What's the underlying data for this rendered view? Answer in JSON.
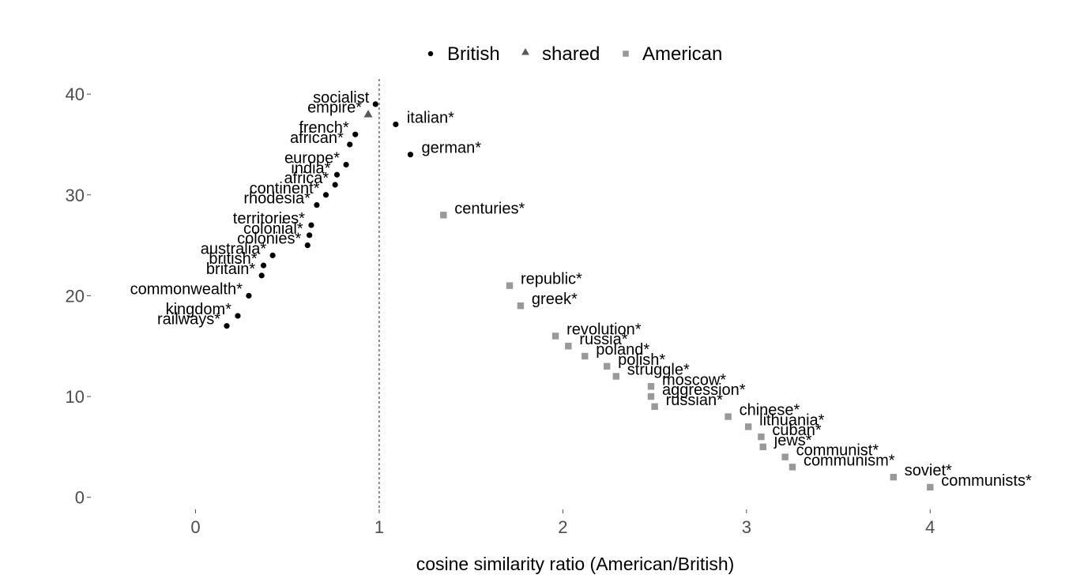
{
  "chart_data": {
    "type": "scatter",
    "xlabel": "cosine similarity ratio (American/British)",
    "ylabel": "",
    "xlim": [
      -0.57,
      4.7
    ],
    "ylim": [
      -1.2,
      41.5
    ],
    "x_ticks": [
      0,
      1,
      2,
      3,
      4
    ],
    "y_ticks": [
      0,
      10,
      20,
      30,
      40
    ],
    "x_tick_labels": [
      "0",
      "1",
      "2",
      "3",
      "4"
    ],
    "y_tick_labels": [
      "0",
      "10",
      "20",
      "30",
      "40"
    ],
    "reference_line": {
      "x": 1,
      "style": "dotted"
    },
    "grid": false,
    "legend": {
      "placement": "top",
      "entries": [
        {
          "label": "British",
          "shape": "circle",
          "color": "#000000"
        },
        {
          "label": "shared",
          "shape": "triangle",
          "color": "#595959"
        },
        {
          "label": "American",
          "shape": "square",
          "color": "#999999"
        }
      ]
    },
    "series": [
      {
        "name": "British",
        "shape": "circle",
        "color": "#000000",
        "points": [
          {
            "label": "socialist",
            "x": 0.98,
            "y": 39
          },
          {
            "label": "italian*",
            "x": 1.09,
            "y": 37
          },
          {
            "label": "french*",
            "x": 0.87,
            "y": 36
          },
          {
            "label": "african*",
            "x": 0.84,
            "y": 35
          },
          {
            "label": "german*",
            "x": 1.17,
            "y": 34
          },
          {
            "label": "europe*",
            "x": 0.82,
            "y": 33
          },
          {
            "label": "india*",
            "x": 0.77,
            "y": 32
          },
          {
            "label": "africa*",
            "x": 0.76,
            "y": 31
          },
          {
            "label": "continent*",
            "x": 0.71,
            "y": 30
          },
          {
            "label": "rhodesia*",
            "x": 0.66,
            "y": 29
          },
          {
            "label": "territories*",
            "x": 0.63,
            "y": 27
          },
          {
            "label": "colonial*",
            "x": 0.62,
            "y": 26
          },
          {
            "label": "colonies*",
            "x": 0.61,
            "y": 25
          },
          {
            "label": "australia*",
            "x": 0.42,
            "y": 24
          },
          {
            "label": "british*",
            "x": 0.37,
            "y": 23
          },
          {
            "label": "britain*",
            "x": 0.36,
            "y": 22
          },
          {
            "label": "commonwealth*",
            "x": 0.29,
            "y": 20
          },
          {
            "label": "kingdom*",
            "x": 0.23,
            "y": 18
          },
          {
            "label": "railways*",
            "x": 0.17,
            "y": 17
          }
        ]
      },
      {
        "name": "shared",
        "shape": "triangle",
        "color": "#595959",
        "points": [
          {
            "label": "empire*",
            "x": 0.94,
            "y": 38
          }
        ]
      },
      {
        "name": "American",
        "shape": "square",
        "color": "#999999",
        "points": [
          {
            "label": "centuries*",
            "x": 1.35,
            "y": 28
          },
          {
            "label": "republic*",
            "x": 1.71,
            "y": 21
          },
          {
            "label": "greek*",
            "x": 1.77,
            "y": 19
          },
          {
            "label": "revolution*",
            "x": 1.96,
            "y": 16
          },
          {
            "label": "russia*",
            "x": 2.03,
            "y": 15
          },
          {
            "label": "poland*",
            "x": 2.12,
            "y": 14
          },
          {
            "label": "polish*",
            "x": 2.24,
            "y": 13
          },
          {
            "label": "struggle*",
            "x": 2.29,
            "y": 12
          },
          {
            "label": "moscow*",
            "x": 2.48,
            "y": 11
          },
          {
            "label": "aggression*",
            "x": 2.48,
            "y": 10
          },
          {
            "label": "russian*",
            "x": 2.5,
            "y": 9
          },
          {
            "label": "chinese*",
            "x": 2.9,
            "y": 8
          },
          {
            "label": "lithuania*",
            "x": 3.01,
            "y": 7
          },
          {
            "label": "cuban*",
            "x": 3.08,
            "y": 6
          },
          {
            "label": "jews*",
            "x": 3.09,
            "y": 5
          },
          {
            "label": "communist*",
            "x": 3.21,
            "y": 4
          },
          {
            "label": "communism*",
            "x": 3.25,
            "y": 3
          },
          {
            "label": "soviet*",
            "x": 3.8,
            "y": 2
          },
          {
            "label": "communists*",
            "x": 4.0,
            "y": 1
          }
        ]
      }
    ]
  }
}
